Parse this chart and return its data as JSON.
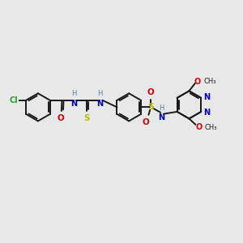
{
  "bg_color": "#e8e8e8",
  "bond_color": "#1a1a1a",
  "cl_color": "#22aa22",
  "o_color": "#dd0000",
  "n_color": "#0000cc",
  "s_color": "#bbbb00",
  "nh_color": "#4488aa",
  "line_width": 1.4,
  "fig_size": [
    3.0,
    3.0
  ],
  "dpi": 100,
  "xlim": [
    0,
    10
  ],
  "ylim": [
    0,
    10
  ]
}
